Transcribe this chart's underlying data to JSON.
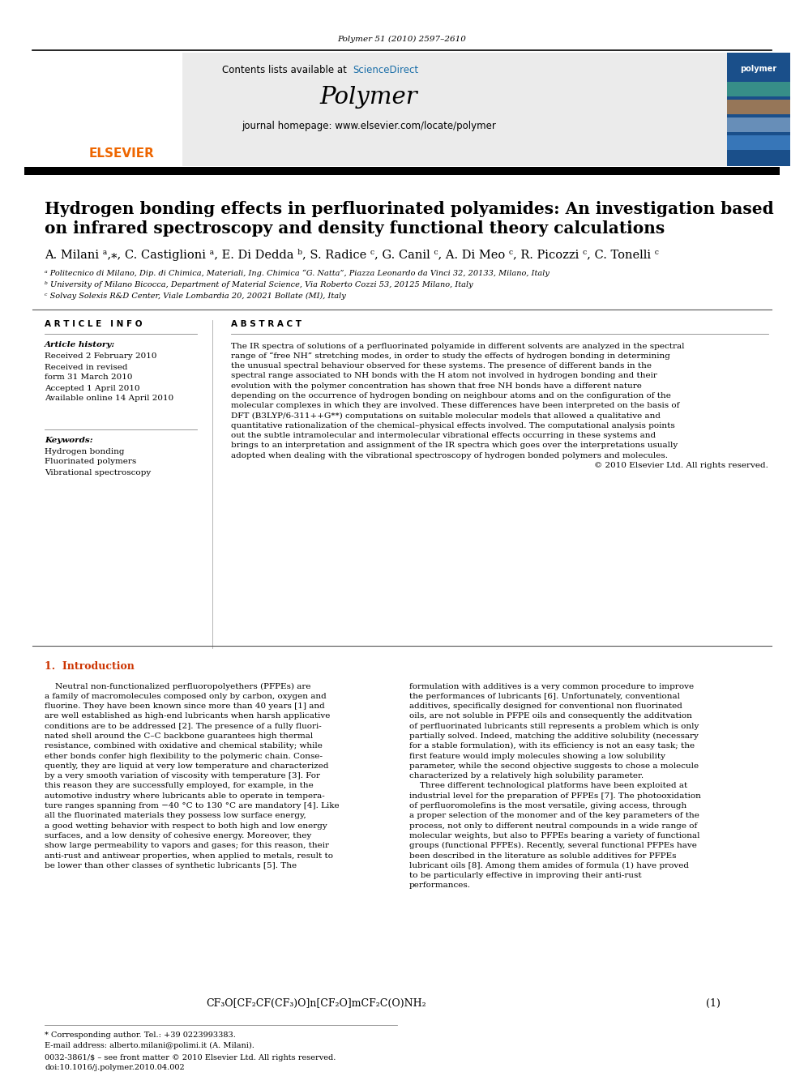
{
  "bg_color": "#ffffff",
  "header_journal_ref": "Polymer 51 (2010) 2597–2610",
  "header_contents": "Contents lists available at ",
  "header_sciencedirect": "ScienceDirect",
  "header_journal_name": "Polymer",
  "header_homepage": "journal homepage: www.elsevier.com/locate/polymer",
  "header_bg": "#ebebeb",
  "title_line1": "Hydrogen bonding effects in perfluorinated polyamides: An investigation based",
  "title_line2": "on infrared spectroscopy and density functional theory calculations",
  "authors_full": "A. Milani ᵃ,⁎, C. Castiglioni ᵃ, E. Di Dedda ᵇ, S. Radice ᶜ, G. Canil ᶜ, A. Di Meo ᶜ, R. Picozzi ᶜ, C. Tonelli ᶜ",
  "affil_a": "ᵃ Politecnico di Milano, Dip. di Chimica, Materiali, Ing. Chimica “G. Natta”, Piazza Leonardo da Vinci 32, 20133, Milano, Italy",
  "affil_b": "ᵇ University of Milano Bicocca, Department of Material Science, Via Roberto Cozzi 53, 20125 Milano, Italy",
  "affil_c": "ᶜ Solvay Solexis R&D Center, Viale Lombardia 20, 20021 Bollate (MI), Italy",
  "article_info_header": "A R T I C L E   I N F O",
  "article_history_label": "Article history:",
  "article_history": [
    "Received 2 February 2010",
    "Received in revised",
    "form 31 March 2010",
    "Accepted 1 April 2010",
    "Available online 14 April 2010"
  ],
  "keywords_label": "Keywords:",
  "keywords": [
    "Hydrogen bonding",
    "Fluorinated polymers",
    "Vibrational spectroscopy"
  ],
  "abstract_header": "A B S T R A C T",
  "abstract_lines": [
    "The IR spectra of solutions of a perfluorinated polyamide in different solvents are analyzed in the spectral",
    "range of “free NH” stretching modes, in order to study the effects of hydrogen bonding in determining",
    "the unusual spectral behaviour observed for these systems. The presence of different bands in the",
    "spectral range associated to NH bonds with the H atom not involved in hydrogen bonding and their",
    "evolution with the polymer concentration has shown that free NH bonds have a different nature",
    "depending on the occurrence of hydrogen bonding on neighbour atoms and on the configuration of the",
    "molecular complexes in which they are involved. These differences have been interpreted on the basis of",
    "DFT (B3LYP/6-311++G**) computations on suitable molecular models that allowed a qualitative and",
    "quantitative rationalization of the chemical–physical effects involved. The computational analysis points",
    "out the subtle intramolecular and intermolecular vibrational effects occurring in these systems and",
    "brings to an interpretation and assignment of the IR spectra which goes over the interpretations usually",
    "adopted when dealing with the vibrational spectroscopy of hydrogen bonded polymers and molecules.",
    "© 2010 Elsevier Ltd. All rights reserved."
  ],
  "intro_header": "1.  Introduction",
  "left_intro_lines": [
    "    Neutral non-functionalized perfluoropolyethers (PFPEs) are",
    "a family of macromolecules composed only by carbon, oxygen and",
    "fluorine. They have been known since more than 40 years [1] and",
    "are well established as high-end lubricants when harsh applicative",
    "conditions are to be addressed [2]. The presence of a fully fluori-",
    "nated shell around the C–C backbone guarantees high thermal",
    "resistance, combined with oxidative and chemical stability; while",
    "ether bonds confer high flexibility to the polymeric chain. Conse-",
    "quently, they are liquid at very low temperature and characterized",
    "by a very smooth variation of viscosity with temperature [3]. For",
    "this reason they are successfully employed, for example, in the",
    "automotive industry where lubricants able to operate in tempera-",
    "ture ranges spanning from −40 °C to 130 °C are mandatory [4]. Like",
    "all the fluorinated materials they possess low surface energy,",
    "a good wetting behavior with respect to both high and low energy",
    "surfaces, and a low density of cohesive energy. Moreover, they",
    "show large permeability to vapors and gases; for this reason, their",
    "anti-rust and antiwear properties, when applied to metals, result to",
    "be lower than other classes of synthetic lubricants [5]. The"
  ],
  "right_intro_lines": [
    "formulation with additives is a very common procedure to improve",
    "the performances of lubricants [6]. Unfortunately, conventional",
    "additives, specifically designed for conventional non fluorinated",
    "oils, are not soluble in PFPE oils and consequently the additvation",
    "of perfluorinated lubricants still represents a problem which is only",
    "partially solved. Indeed, matching the additive solubility (necessary",
    "for a stable formulation), with its efficiency is not an easy task; the",
    "first feature would imply molecules showing a low solubility",
    "parameter, while the second objective suggests to chose a molecule",
    "characterized by a relatively high solubility parameter.",
    "    Three different technological platforms have been exploited at",
    "industrial level for the preparation of PFPEs [7]. The photooxidation",
    "of perfluoromolefins is the most versatile, giving access, through",
    "a proper selection of the monomer and of the key parameters of the",
    "process, not only to different neutral compounds in a wide range of",
    "molecular weights, but also to PFPEs bearing a variety of functional",
    "groups (functional PFPEs). Recently, several functional PFPEs have",
    "been described in the literature as soluble additives for PFPEs",
    "lubricant oils [8]. Among them amides of formula (1) have proved",
    "to be particularly effective in improving their anti-rust",
    "performances."
  ],
  "formula": "CF₃O[CF₂CF(CF₃)O]n[CF₂O]mCF₂C(O)NH₂",
  "formula_num": "(1)",
  "footnote_star": "* Corresponding author. Tel.: +39 0223993383.",
  "footnote_email": "E-mail address: alberto.milani@polimi.it (A. Milani).",
  "footnote_issn": "0032-3861/$ – see front matter © 2010 Elsevier Ltd. All rights reserved.",
  "footnote_doi": "doi:10.1016/j.polymer.2010.04.002",
  "elsevier_color": "#ee6600",
  "sciencedirect_color": "#1a6ea8",
  "link_color": "#1a6ea8",
  "intro_color": "#cc3300"
}
